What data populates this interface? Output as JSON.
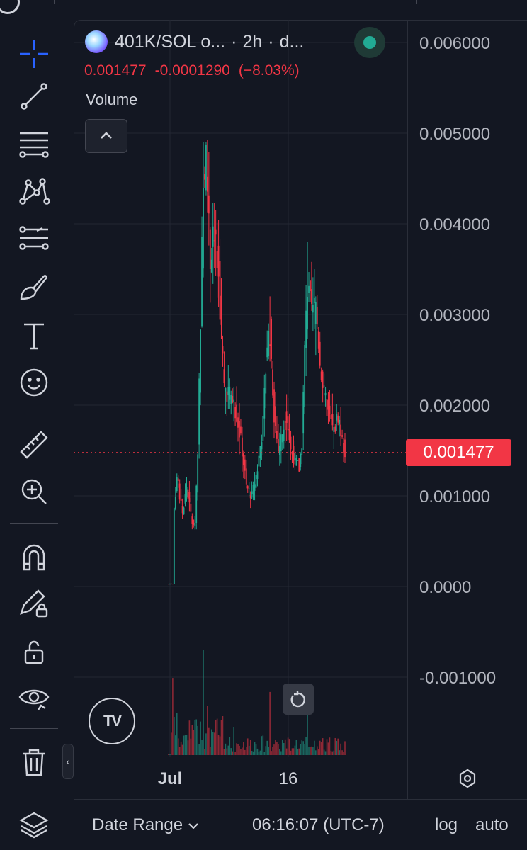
{
  "legend": {
    "symbol": "401K/SOL o...",
    "interval": "2h",
    "exchange": "d...",
    "last": "0.001477",
    "change": "-0.0001290",
    "change_pct": "(−8.03%)",
    "volume_label": "Volume"
  },
  "price_tag": "0.001477",
  "bottom": {
    "date_range": "Date Range",
    "time": "06:16:07 (UTC-7)",
    "log": "log",
    "auto": "auto"
  },
  "tv_logo": "TV",
  "colors": {
    "up": "#22ab94",
    "down": "#f23645",
    "bg": "#131722",
    "grid": "#2a2e39"
  },
  "toolbar_icons": [
    "crosshair-icon",
    "trend-line-icon",
    "fib-retracement-icon",
    "pattern-icon",
    "prediction-icon",
    "brush-icon",
    "text-icon",
    "emoji-icon",
    "ruler-icon",
    "zoom-in-icon",
    "magnet-icon",
    "lock-drawing-icon",
    "lock-icon",
    "eye-icon",
    "trash-icon",
    "layers-icon"
  ],
  "chart_data": {
    "type": "candlestick",
    "title": "401K/SOL o... · 2h · d...",
    "y_tick_labels": [
      "0.006000",
      "0.005000",
      "0.004000",
      "0.003000",
      "0.002000",
      "0.001000",
      "0.0000",
      "-0.001000"
    ],
    "y_ticks": [
      0.006,
      0.005,
      0.004,
      0.003,
      0.002,
      0.001,
      0.0,
      -0.001
    ],
    "x_tick_labels": [
      "Jul",
      "16"
    ],
    "ylim": [
      -0.0017,
      0.0063
    ],
    "last_price": 0.001477,
    "price_line_style": "dotted red",
    "close_path": [
      [
        3e-05,
        0
      ],
      [
        3e-05,
        3
      ],
      [
        0.0007,
        3
      ],
      [
        0.0012,
        6
      ],
      [
        0.0008,
        10
      ],
      [
        0.0011,
        13
      ],
      [
        0.0007,
        17
      ],
      [
        0.0007,
        19
      ],
      [
        0.0015,
        21
      ],
      [
        0.003,
        23
      ],
      [
        0.0044,
        25
      ],
      [
        0.0048,
        27
      ],
      [
        0.0036,
        30
      ],
      [
        0.004,
        32
      ],
      [
        0.0034,
        36
      ],
      [
        0.0022,
        40
      ],
      [
        0.0021,
        45
      ],
      [
        0.0019,
        49
      ],
      [
        0.0015,
        53
      ],
      [
        0.0011,
        56
      ],
      [
        0.001,
        60
      ],
      [
        0.0013,
        64
      ],
      [
        0.0018,
        68
      ],
      [
        0.0027,
        71
      ],
      [
        0.0028,
        73
      ],
      [
        0.0019,
        76
      ],
      [
        0.0015,
        79
      ],
      [
        0.0017,
        82
      ],
      [
        0.0019,
        85
      ],
      [
        0.0015,
        88
      ],
      [
        0.0014,
        91
      ],
      [
        0.0013,
        94
      ],
      [
        0.0016,
        96
      ],
      [
        0.0026,
        98
      ],
      [
        0.0033,
        100
      ],
      [
        0.003,
        103
      ],
      [
        0.0031,
        106
      ],
      [
        0.0025,
        109
      ],
      [
        0.0021,
        112
      ],
      [
        0.0019,
        115
      ],
      [
        0.0017,
        119
      ],
      [
        0.0019,
        122
      ],
      [
        0.0016,
        125
      ],
      [
        0.001477,
        127
      ]
    ],
    "high_spikes": [
      [
        25,
        0.0049
      ],
      [
        27,
        0.0049
      ],
      [
        73,
        0.0032
      ],
      [
        100,
        0.0038
      ],
      [
        106,
        0.0032
      ]
    ],
    "volume_spikes": [
      [
        3,
        0.55
      ],
      [
        6,
        0.3
      ],
      [
        25,
        0.75
      ],
      [
        28,
        0.35
      ],
      [
        47,
        0.2
      ],
      [
        73,
        0.45
      ],
      [
        100,
        0.35
      ]
    ]
  }
}
